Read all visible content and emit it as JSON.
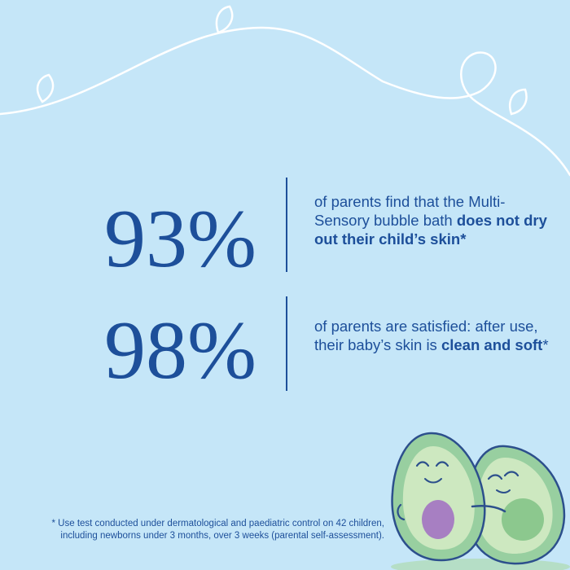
{
  "stats": [
    {
      "value": "93%",
      "text_plain": "of parents find that the Multi-Sensory bubble bath ",
      "text_bold": "does not dry out their child’s skin*",
      "text_suffix": ""
    },
    {
      "value": "98%",
      "text_plain": "of parents are satisfied: after use, their baby’s skin is ",
      "text_bold": "clean and soft",
      "text_suffix": "*"
    }
  ],
  "footnote": {
    "line1": "* Use test conducted under dermatological and paediatric control on 42 children,",
    "line2": "including newborns under 3 months, over 3 weeks (parental self-assessment)."
  },
  "colors": {
    "background": "#c5e6f8",
    "text": "#1d4f9a",
    "vine": "#ffffff",
    "avocado_skin": "#98cfa0",
    "avocado_flesh": "#cde8c0",
    "avocado_pit_purple": "#a77fc2",
    "avocado_pit_green": "#8cc88e"
  }
}
